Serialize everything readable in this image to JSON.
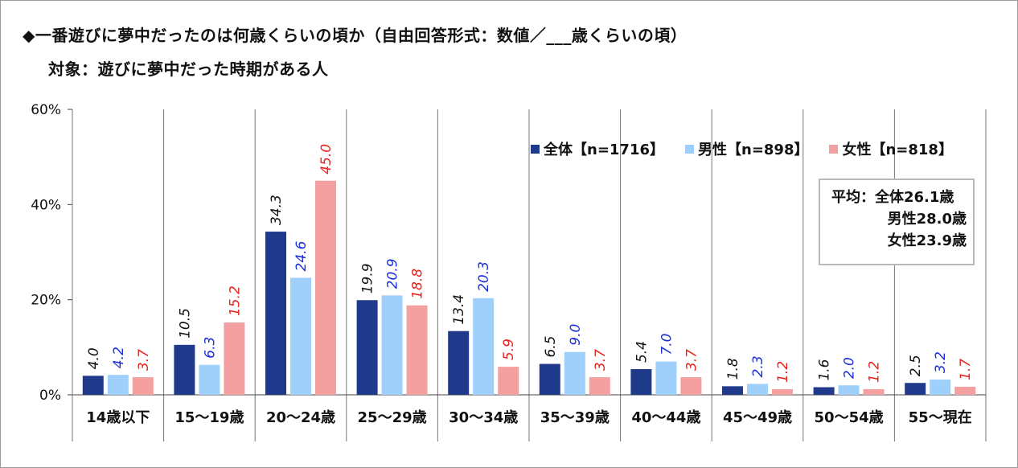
{
  "title": "◆一番遊びに夢中だったのは何歳くらいの頃か（自由回答形式：数値／___歳くらいの頃）",
  "subtitle": "対象：遊びに夢中だった時期がある人",
  "average_box": {
    "line1": "平均：全体26.1歳",
    "line2": "男性28.0歳",
    "line3": "女性23.9歳"
  },
  "chart_data": {
    "type": "bar",
    "categories": [
      "14歳以下",
      "15～19歳",
      "20～24歳",
      "25～29歳",
      "30～34歳",
      "35～39歳",
      "40～44歳",
      "45～49歳",
      "50～54歳",
      "55～現在"
    ],
    "series": [
      {
        "name": "全体【n=1716】",
        "color": "#1f3a8a",
        "label_color": "#111111",
        "values": [
          4.0,
          10.5,
          34.3,
          19.9,
          13.4,
          6.5,
          5.4,
          1.8,
          1.6,
          2.5
        ]
      },
      {
        "name": "男性【n=898】",
        "color": "#9fd0fb",
        "label_color": "#1c2fd6",
        "values": [
          4.2,
          6.3,
          24.6,
          20.9,
          20.3,
          9.0,
          7.0,
          2.3,
          2.0,
          3.2
        ]
      },
      {
        "name": "女性【n=818】",
        "color": "#f4a0a0",
        "label_color": "#e8211b",
        "values": [
          3.7,
          15.2,
          45.0,
          18.8,
          5.9,
          3.7,
          3.7,
          1.2,
          1.2,
          1.7
        ]
      }
    ],
    "ylim": [
      0,
      60
    ],
    "yticks": [
      "0%",
      "20%",
      "40%",
      "60%"
    ],
    "ytick_values": [
      0,
      20,
      40,
      60
    ],
    "grid": "vertical separators between categories",
    "legend": "top-right"
  }
}
